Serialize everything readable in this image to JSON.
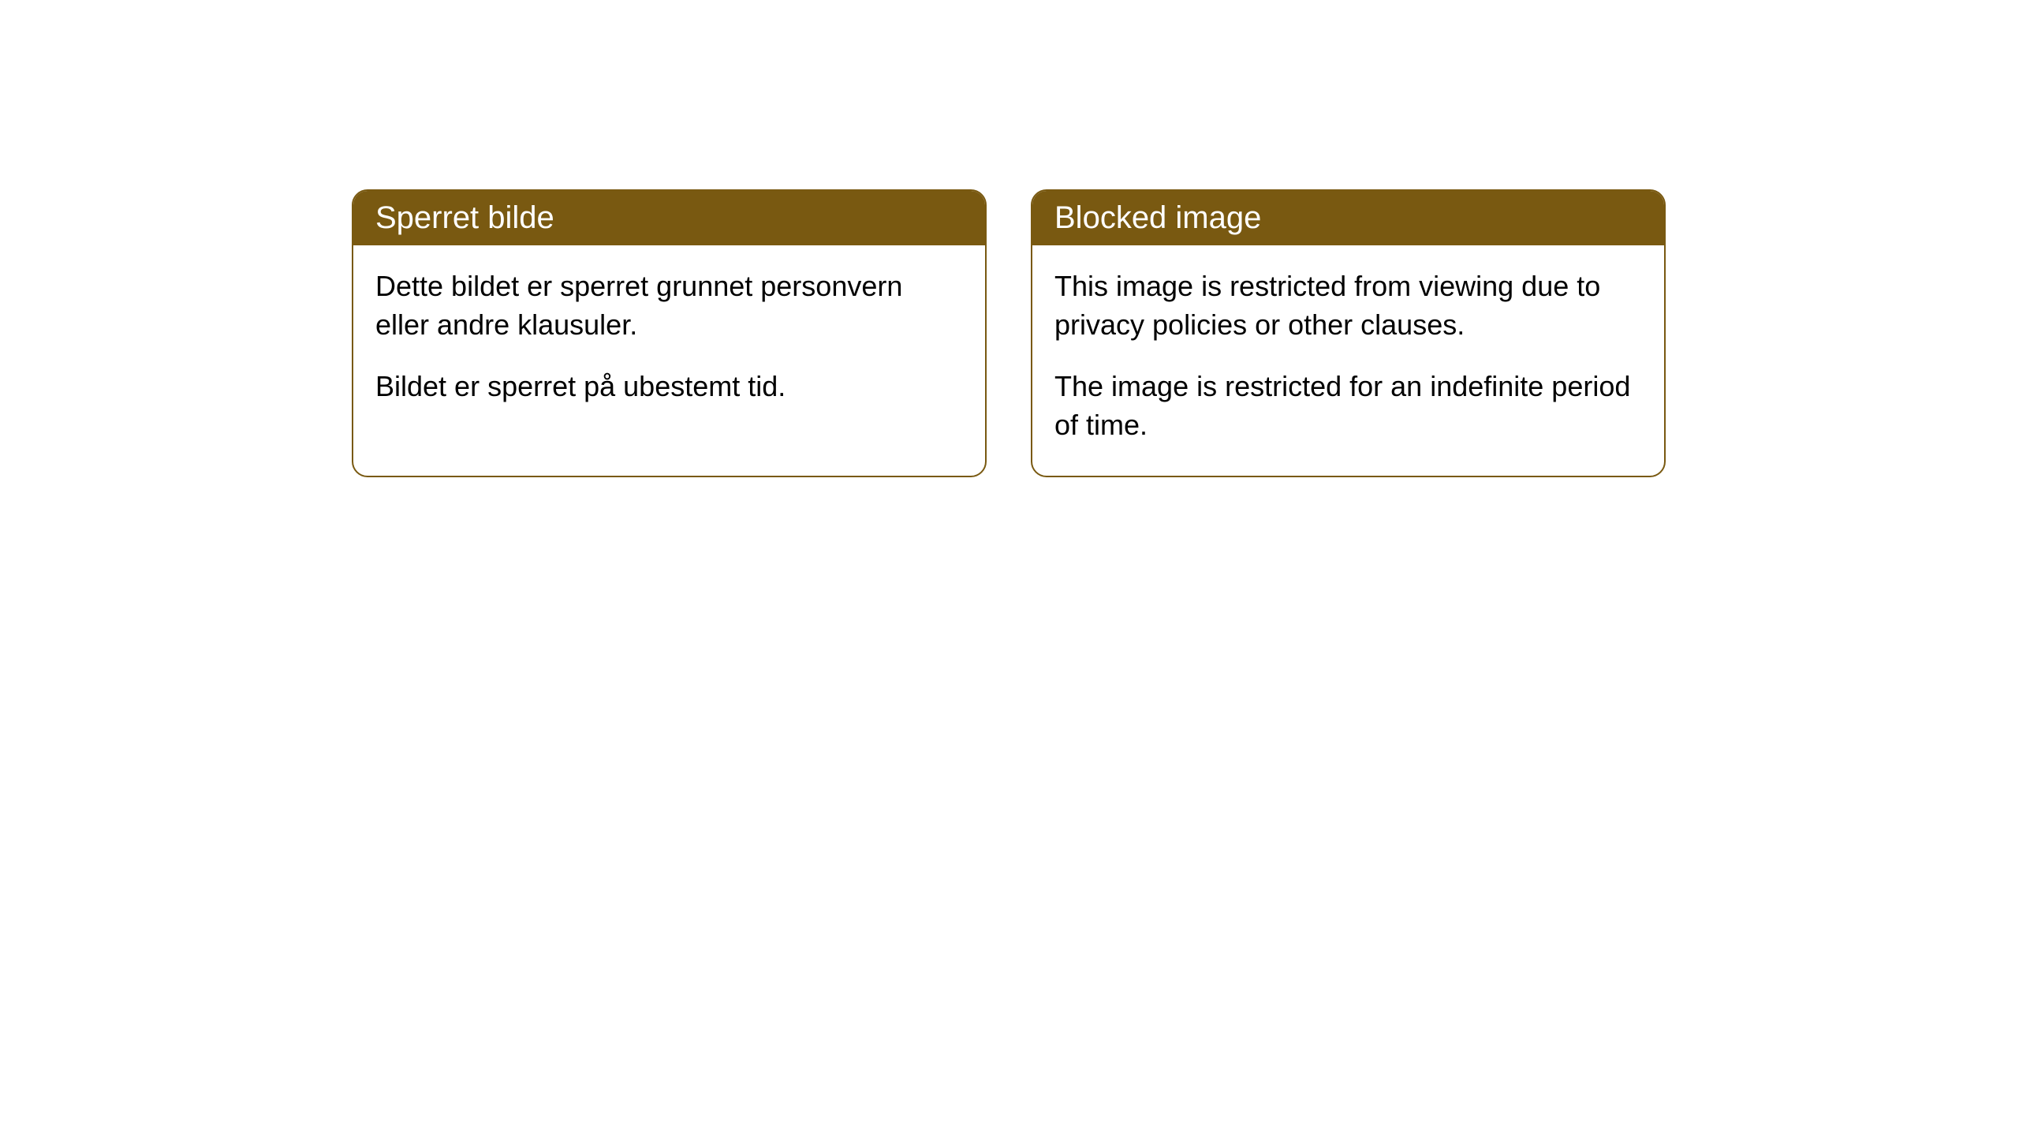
{
  "cards": {
    "left": {
      "title": "Sperret bilde",
      "paragraph1": "Dette bildet er sperret grunnet personvern eller andre klausuler.",
      "paragraph2": "Bildet er sperret på ubestemt tid."
    },
    "right": {
      "title": "Blocked image",
      "paragraph1": "This image is restricted from viewing due to privacy policies or other clauses.",
      "paragraph2": "The image is restricted for an indefinite period of time."
    }
  },
  "styling": {
    "header_bg_color": "#795911",
    "header_text_color": "#ffffff",
    "border_color": "#795911",
    "card_bg_color": "#ffffff",
    "body_text_color": "#000000",
    "border_radius": 20,
    "header_fontsize": 40,
    "body_fontsize": 36
  }
}
